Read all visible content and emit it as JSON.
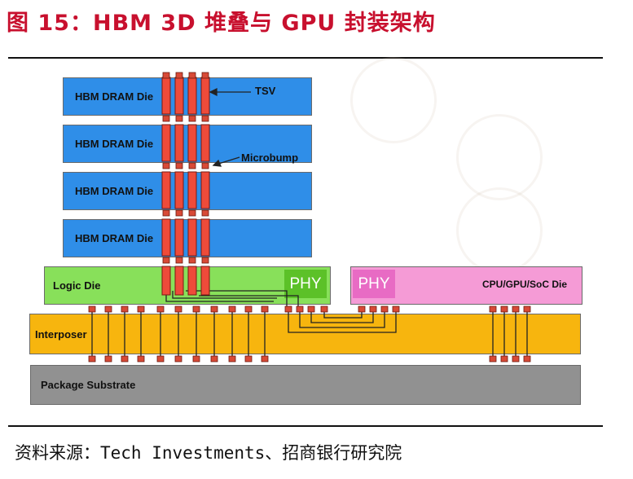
{
  "figure": {
    "title": "图 15：HBM 3D 堆叠与 GPU 封装架构",
    "source": "资料来源：Tech Investments、招商银行研究院"
  },
  "diagram": {
    "hbm_dies": [
      {
        "label": "HBM DRAM Die"
      },
      {
        "label": "HBM DRAM Die"
      },
      {
        "label": "HBM DRAM Die"
      },
      {
        "label": "HBM DRAM Die"
      }
    ],
    "logic_die": {
      "label": "Logic Die",
      "phy": "PHY"
    },
    "processor_die": {
      "label": "CPU/GPU/SoC Die",
      "phy": "PHY"
    },
    "interposer": {
      "label": "Interposer"
    },
    "substrate": {
      "label": "Package Substrate"
    },
    "annotations": {
      "tsv": "TSV",
      "microbump": "Microbump"
    },
    "colors": {
      "hbm": "#2f8ee8",
      "logic": "#88e05a",
      "phy_logic": "#5cc128",
      "processor": "#f59bd6",
      "phy_processor": "#e86bc4",
      "interposer": "#f7b50e",
      "substrate": "#919191",
      "tsv": "#ee4b3a",
      "title": "#c8102e"
    }
  }
}
